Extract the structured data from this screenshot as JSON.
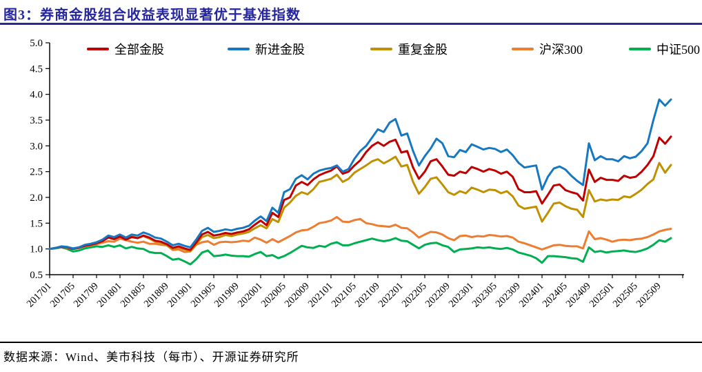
{
  "figure": {
    "title": "图3：券商金股组合收益表现显著优于基准指数",
    "source": "数据来源：Wind、美市科技（每市）、开源证券研究所",
    "accent_color": "#2626A0"
  },
  "chart_data": {
    "type": "line",
    "title": "券商金股组合收益表现显著优于基准指数",
    "xlabel": "",
    "ylabel": "",
    "ylim": [
      0.5,
      5.0
    ],
    "y_ticks": [
      "0.5",
      "1.0",
      "1.5",
      "2.0",
      "2.5",
      "3.0",
      "3.5",
      "4.0",
      "4.5",
      "5.0"
    ],
    "grid": false,
    "legend_position": "top",
    "x_start": "201701",
    "x_freq": "monthly",
    "x_tick_every": 4,
    "x_tick_labels": [
      "201701",
      "201705",
      "201709",
      "201801",
      "201805",
      "201809",
      "201901",
      "201905",
      "201909",
      "202001",
      "202005",
      "202009",
      "202101",
      "202105",
      "202109",
      "202201",
      "202205",
      "202209",
      "202301",
      "202305",
      "202309",
      "202401",
      "202405",
      "202409",
      "202501",
      "202505",
      "202509"
    ],
    "series": [
      {
        "name": "全部金股",
        "color": "#C00000",
        "values": [
          1.0,
          1.02,
          1.04,
          1.03,
          1.0,
          1.02,
          1.06,
          1.08,
          1.11,
          1.15,
          1.22,
          1.19,
          1.24,
          1.18,
          1.23,
          1.21,
          1.26,
          1.22,
          1.16,
          1.14,
          1.09,
          1.02,
          1.05,
          1.01,
          0.98,
          1.12,
          1.28,
          1.33,
          1.26,
          1.28,
          1.31,
          1.29,
          1.32,
          1.34,
          1.38,
          1.47,
          1.55,
          1.46,
          1.7,
          1.62,
          1.95,
          2.0,
          2.23,
          2.3,
          2.24,
          2.35,
          2.43,
          2.48,
          2.52,
          2.6,
          2.46,
          2.5,
          2.62,
          2.72,
          2.88,
          3.0,
          3.07,
          3.0,
          3.08,
          3.12,
          2.87,
          2.9,
          2.58,
          2.36,
          2.5,
          2.7,
          2.74,
          2.6,
          2.44,
          2.42,
          2.5,
          2.47,
          2.59,
          2.55,
          2.5,
          2.55,
          2.52,
          2.46,
          2.5,
          2.4,
          2.16,
          2.1,
          2.1,
          2.12,
          1.88,
          2.05,
          2.23,
          2.25,
          2.14,
          2.1,
          2.07,
          1.94,
          2.54,
          2.3,
          2.38,
          2.34,
          2.34,
          2.32,
          2.42,
          2.38,
          2.4,
          2.5,
          2.63,
          2.8,
          3.16,
          3.04,
          3.18
        ]
      },
      {
        "name": "新进金股",
        "color": "#1778C2",
        "values": [
          1.0,
          1.02,
          1.05,
          1.04,
          1.01,
          1.03,
          1.08,
          1.1,
          1.13,
          1.18,
          1.26,
          1.23,
          1.28,
          1.22,
          1.28,
          1.26,
          1.32,
          1.28,
          1.22,
          1.2,
          1.14,
          1.07,
          1.1,
          1.06,
          1.03,
          1.18,
          1.35,
          1.41,
          1.33,
          1.35,
          1.38,
          1.36,
          1.39,
          1.41,
          1.45,
          1.55,
          1.63,
          1.54,
          1.8,
          1.7,
          2.1,
          2.16,
          2.36,
          2.43,
          2.35,
          2.46,
          2.52,
          2.55,
          2.57,
          2.62,
          2.5,
          2.55,
          2.75,
          2.9,
          3.0,
          3.16,
          3.32,
          3.27,
          3.45,
          3.52,
          3.2,
          3.24,
          2.9,
          2.62,
          2.8,
          2.95,
          3.14,
          3.05,
          2.8,
          2.78,
          2.92,
          2.88,
          3.03,
          2.98,
          2.93,
          2.96,
          2.94,
          2.88,
          2.93,
          2.82,
          2.67,
          2.58,
          2.6,
          2.62,
          2.15,
          2.4,
          2.56,
          2.6,
          2.54,
          2.42,
          2.32,
          2.24,
          3.05,
          2.72,
          2.8,
          2.74,
          2.74,
          2.7,
          2.8,
          2.76,
          2.79,
          2.9,
          3.05,
          3.5,
          3.9,
          3.78,
          3.9
        ]
      },
      {
        "name": "重复金股",
        "color": "#BF9000",
        "values": [
          1.0,
          1.02,
          1.04,
          1.03,
          1.0,
          1.02,
          1.06,
          1.09,
          1.12,
          1.16,
          1.23,
          1.2,
          1.25,
          1.19,
          1.24,
          1.21,
          1.25,
          1.2,
          1.14,
          1.12,
          1.07,
          1.0,
          1.03,
          0.99,
          0.96,
          1.09,
          1.23,
          1.27,
          1.21,
          1.23,
          1.27,
          1.25,
          1.28,
          1.3,
          1.33,
          1.4,
          1.46,
          1.4,
          1.58,
          1.52,
          1.8,
          1.9,
          2.03,
          2.1,
          2.06,
          2.16,
          2.3,
          2.33,
          2.36,
          2.44,
          2.3,
          2.36,
          2.48,
          2.55,
          2.62,
          2.7,
          2.74,
          2.66,
          2.72,
          2.79,
          2.6,
          2.63,
          2.3,
          2.07,
          2.2,
          2.36,
          2.39,
          2.25,
          2.1,
          2.05,
          2.12,
          2.08,
          2.19,
          2.15,
          2.1,
          2.15,
          2.14,
          2.08,
          2.12,
          2.02,
          1.84,
          1.78,
          1.8,
          1.82,
          1.53,
          1.7,
          1.88,
          1.9,
          1.83,
          1.78,
          1.76,
          1.62,
          2.14,
          1.92,
          1.96,
          1.94,
          1.96,
          1.95,
          2.02,
          2.0,
          2.07,
          2.15,
          2.26,
          2.35,
          2.67,
          2.48,
          2.63
        ]
      },
      {
        "name": "沪深300",
        "color": "#ED7D31",
        "values": [
          1.0,
          1.02,
          1.03,
          1.02,
          1.0,
          1.03,
          1.05,
          1.07,
          1.09,
          1.12,
          1.15,
          1.14,
          1.2,
          1.17,
          1.14,
          1.12,
          1.14,
          1.1,
          1.1,
          1.08,
          1.07,
          0.98,
          0.99,
          0.94,
          0.95,
          1.08,
          1.13,
          1.15,
          1.08,
          1.13,
          1.14,
          1.13,
          1.14,
          1.16,
          1.15,
          1.22,
          1.18,
          1.12,
          1.19,
          1.13,
          1.19,
          1.25,
          1.32,
          1.36,
          1.37,
          1.43,
          1.5,
          1.52,
          1.55,
          1.62,
          1.53,
          1.52,
          1.56,
          1.58,
          1.5,
          1.48,
          1.45,
          1.44,
          1.43,
          1.47,
          1.41,
          1.4,
          1.32,
          1.22,
          1.28,
          1.33,
          1.32,
          1.28,
          1.21,
          1.17,
          1.25,
          1.26,
          1.23,
          1.25,
          1.24,
          1.27,
          1.26,
          1.24,
          1.25,
          1.22,
          1.14,
          1.11,
          1.07,
          1.03,
          0.99,
          1.03,
          1.07,
          1.08,
          1.06,
          1.05,
          1.05,
          1.01,
          1.34,
          1.19,
          1.21,
          1.18,
          1.14,
          1.17,
          1.18,
          1.17,
          1.19,
          1.2,
          1.23,
          1.28,
          1.34,
          1.37,
          1.39
        ]
      },
      {
        "name": "中证500",
        "color": "#00B050",
        "values": [
          1.0,
          1.01,
          1.03,
          1.0,
          0.95,
          0.97,
          1.01,
          1.03,
          1.05,
          1.04,
          1.07,
          1.04,
          1.07,
          1.01,
          1.04,
          1.01,
          1.0,
          0.94,
          0.92,
          0.92,
          0.86,
          0.79,
          0.81,
          0.76,
          0.7,
          0.8,
          0.93,
          0.97,
          0.86,
          0.87,
          0.89,
          0.87,
          0.86,
          0.86,
          0.85,
          0.9,
          0.94,
          0.86,
          0.88,
          0.82,
          0.86,
          0.92,
          0.99,
          1.06,
          1.03,
          1.02,
          1.06,
          1.04,
          1.1,
          1.13,
          1.07,
          1.07,
          1.11,
          1.14,
          1.17,
          1.2,
          1.17,
          1.15,
          1.17,
          1.21,
          1.16,
          1.15,
          1.08,
          1.01,
          1.08,
          1.11,
          1.12,
          1.07,
          1.04,
          0.94,
          0.99,
          1.0,
          1.01,
          1.03,
          1.02,
          1.03,
          1.01,
          1.0,
          1.02,
          0.99,
          0.93,
          0.9,
          0.87,
          0.82,
          0.73,
          0.86,
          0.86,
          0.85,
          0.84,
          0.82,
          0.81,
          0.75,
          1.03,
          0.94,
          0.96,
          0.93,
          0.95,
          0.96,
          0.97,
          0.95,
          0.94,
          0.97,
          1.01,
          1.08,
          1.17,
          1.14,
          1.21
        ]
      }
    ]
  }
}
